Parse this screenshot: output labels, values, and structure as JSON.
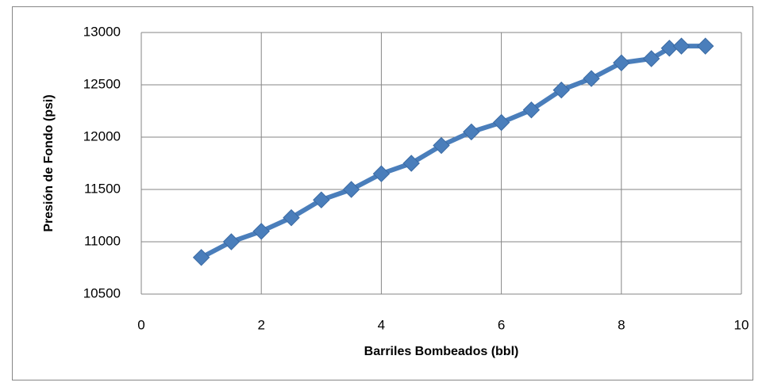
{
  "chart_data": {
    "type": "line",
    "x_label": "Barriles Bombeados (bbl)",
    "y_label": "Presión de Fondo (psi)",
    "series": [
      {
        "color": "#4a7ebb",
        "x": [
          1,
          1.5,
          2,
          2.5,
          3,
          3.5,
          4,
          4.5,
          5,
          5.5,
          6,
          6.5,
          7,
          7.5,
          8,
          8.5,
          8.8,
          9,
          9.4
        ],
        "values": [
          10850,
          11000,
          11100,
          11230,
          11400,
          11500,
          11650,
          11750,
          11920,
          12050,
          12140,
          12260,
          12450,
          12560,
          12710,
          12750,
          12850,
          12870,
          12870
        ]
      }
    ],
    "xlim": [
      0,
      10
    ],
    "xticks": [
      0,
      2,
      4,
      6,
      8,
      10
    ],
    "ylim": [
      10500,
      13000
    ],
    "yticks": [
      10500,
      11000,
      11500,
      12000,
      12500,
      13000
    ],
    "grid": true
  }
}
